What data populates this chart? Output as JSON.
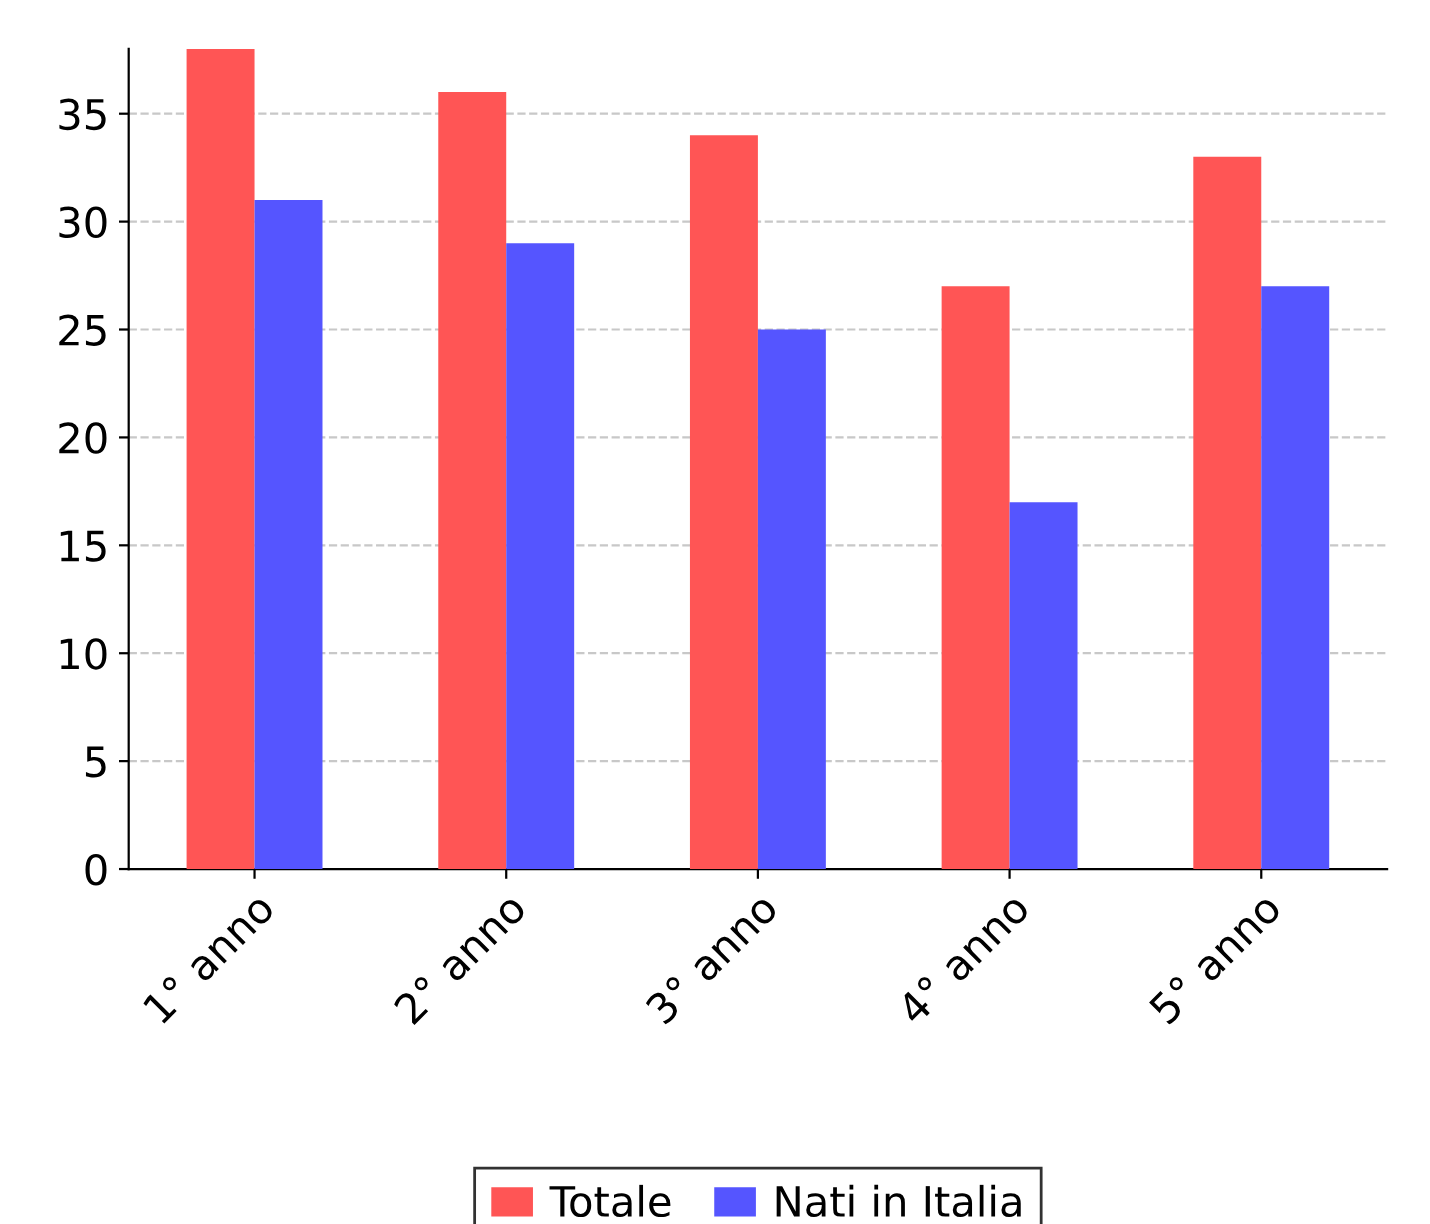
{
  "chart_data": {
    "type": "bar",
    "categories": [
      "1° anno",
      "2° anno",
      "3° anno",
      "4° anno",
      "5° anno"
    ],
    "series": [
      {
        "name": "Totale",
        "color": "#ff5555",
        "values": [
          38,
          36,
          34,
          27,
          33
        ]
      },
      {
        "name": "Nati in Italia",
        "color": "#5555ff",
        "values": [
          31,
          29,
          25,
          17,
          27
        ]
      }
    ],
    "ylim": [
      0,
      38
    ],
    "yticks": [
      0,
      5,
      10,
      15,
      20,
      25,
      30,
      35
    ],
    "grid": "y",
    "legend": "bottom"
  }
}
